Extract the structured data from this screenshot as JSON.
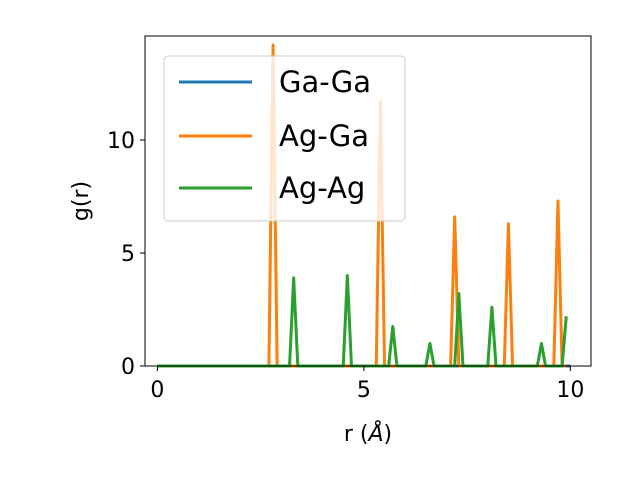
{
  "chart_data": {
    "type": "line",
    "title": "",
    "xlabel": "r (Å)",
    "xlabel_prefix": "r (",
    "xlabel_symbol": "Å",
    "xlabel_suffix": ")",
    "ylabel": "g(r)",
    "xlim": [
      -0.3,
      10.5
    ],
    "ylim": [
      0,
      14.6
    ],
    "xticks": [
      0,
      5,
      10
    ],
    "yticks": [
      0,
      5,
      10
    ],
    "grid": false,
    "legend_position": "upper-left",
    "series": [
      {
        "name": "Ga-Ga",
        "color": "#1f77b4",
        "x": [
          0,
          10
        ],
        "y": [
          0,
          0
        ]
      },
      {
        "name": "Ag-Ga",
        "color": "#ff7f0e",
        "x": [
          0,
          2.7,
          2.8,
          2.9,
          5.3,
          5.4,
          5.5,
          7.1,
          7.2,
          7.3,
          8.4,
          8.5,
          8.6,
          9.6,
          9.7,
          9.8,
          9.9
        ],
        "y": [
          0,
          0,
          14.2,
          0,
          0,
          11.7,
          0,
          0,
          6.6,
          0,
          0,
          6.3,
          0,
          0,
          7.3,
          0,
          0
        ]
      },
      {
        "name": "Ag-Ag",
        "color": "#2ca02c",
        "x": [
          0,
          3.2,
          3.3,
          3.4,
          4.5,
          4.6,
          4.7,
          5.6,
          5.7,
          5.8,
          6.5,
          6.6,
          6.7,
          7.2,
          7.3,
          7.4,
          8.0,
          8.1,
          8.2,
          9.2,
          9.3,
          9.4,
          9.8,
          9.9
        ],
        "y": [
          0,
          0,
          3.9,
          0,
          0,
          4.0,
          0,
          0,
          1.75,
          0,
          0,
          1.0,
          0,
          0,
          3.2,
          0,
          0,
          2.6,
          0,
          0,
          1.0,
          0,
          0,
          2.2
        ]
      }
    ]
  }
}
